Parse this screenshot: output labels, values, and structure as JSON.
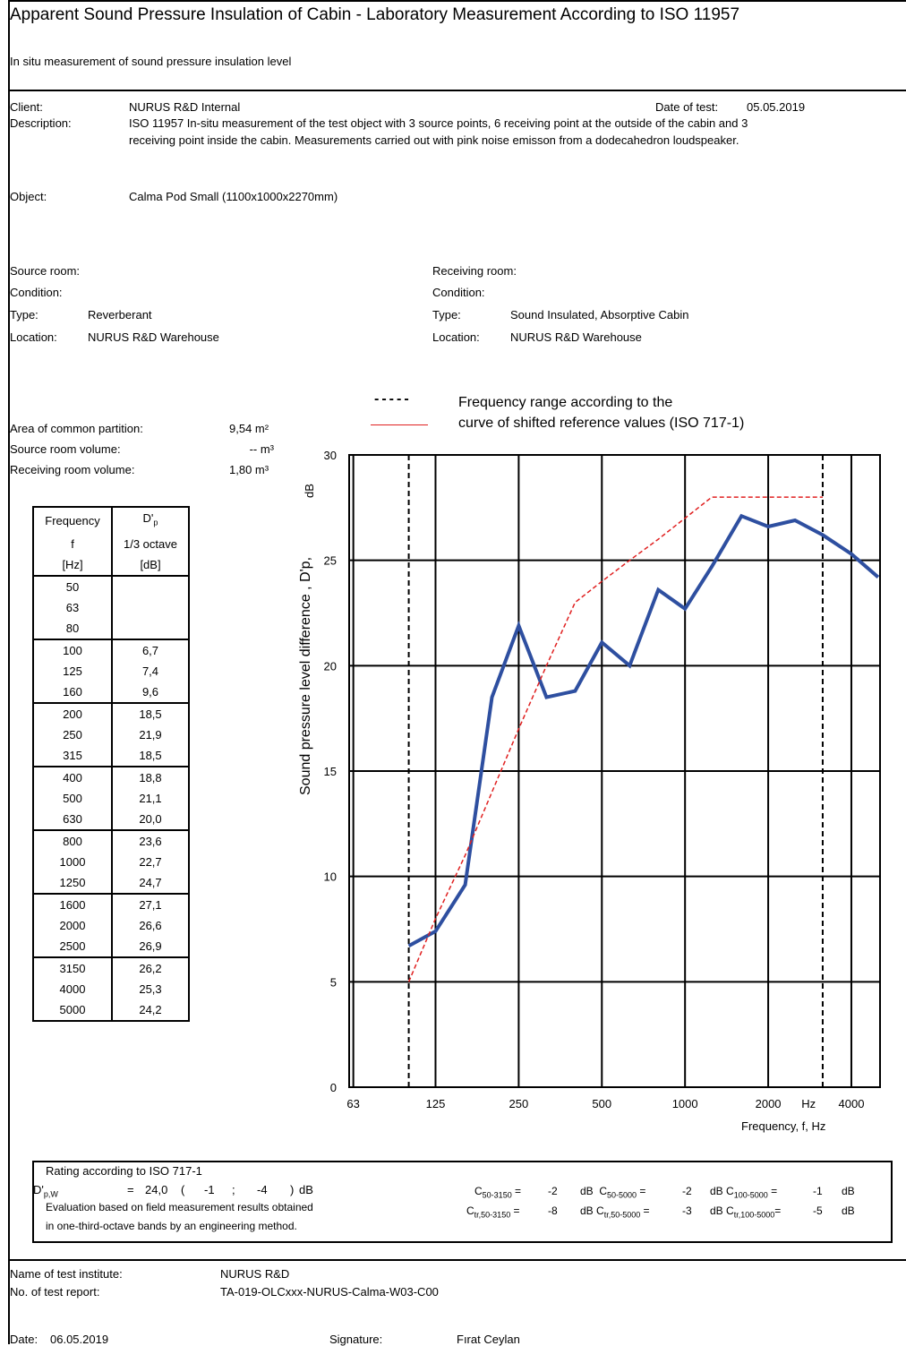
{
  "header": {
    "title": "Apparent Sound Pressure Insulation of Cabin - Laboratory Measurement According to ISO 11957",
    "subtitle": "In situ measurement of sound pressure insulation level"
  },
  "info": {
    "client_label": "Client:",
    "client_value": "NURUS R&D Internal",
    "date_label": "Date of test:",
    "date_value": "05.05.2019",
    "description_label": "Description:",
    "description_line1": "ISO 11957 In-situ measurement of the test object with 3 source points, 6 receiving point at the outside of the cabin and 3",
    "description_line2": "receiving point inside the cabin. Measurements carried out with pink noise emisson from a dodecahedron loudspeaker.",
    "object_label": "Object:",
    "object_value": "Calma Pod Small (1100x1000x2270mm)"
  },
  "rooms": {
    "source_room_label": "Source room:",
    "source_condition_label": "Condition:",
    "source_type_label": "Type:",
    "source_type_value": "Reverberant",
    "source_location_label": "Location:",
    "source_location_value": "NURUS R&D Warehouse",
    "receiving_room_label": "Receiving room:",
    "receiving_condition_label": "Condition:",
    "receiving_type_label": "Type:",
    "receiving_type_value": "Sound Insulated, Absorptive Cabin",
    "receiving_location_label": "Location:",
    "receiving_location_value": "NURUS R&D Warehouse"
  },
  "legend": {
    "dashed_label": "Frequency range according to the",
    "red_label": "curve of shifted reference values (ISO 717-1)",
    "dashed_sample": "-----"
  },
  "params": {
    "area_label": "Area of common partition:",
    "area_value": "9,54 m²",
    "source_volume_label": "Source room volume:",
    "source_volume_value": "-- m³",
    "receiving_volume_label": "Receiving room volume:",
    "receiving_volume_value": "1,80 m³"
  },
  "table": {
    "header": [
      [
        "Frequency",
        "D'p"
      ],
      [
        "f",
        "1/3 octave"
      ],
      [
        "[Hz]",
        "[dB]"
      ]
    ],
    "rows": [
      [
        "50",
        ""
      ],
      [
        "63",
        ""
      ],
      [
        "80",
        ""
      ],
      [
        "100",
        "6,7"
      ],
      [
        "125",
        "7,4"
      ],
      [
        "160",
        "9,6"
      ],
      [
        "200",
        "18,5"
      ],
      [
        "250",
        "21,9"
      ],
      [
        "315",
        "18,5"
      ],
      [
        "400",
        "18,8"
      ],
      [
        "500",
        "21,1"
      ],
      [
        "630",
        "20,0"
      ],
      [
        "800",
        "23,6"
      ],
      [
        "1000",
        "22,7"
      ],
      [
        "1250",
        "24,7"
      ],
      [
        "1600",
        "27,1"
      ],
      [
        "2000",
        "26,6"
      ],
      [
        "2500",
        "26,9"
      ],
      [
        "3150",
        "26,2"
      ],
      [
        "4000",
        "25,3"
      ],
      [
        "5000",
        "24,2"
      ]
    ]
  },
  "chart_data": {
    "type": "line",
    "ylabel": "Sound pressure level difference , D'p,",
    "ylabel_unit": "dB",
    "xlabel": "Frequency, f, Hz",
    "x_tick_labels": [
      "63",
      "125",
      "250",
      "500",
      "1000",
      "2000",
      "Hz",
      "4000"
    ],
    "y_ticks": [
      0,
      5,
      10,
      15,
      20,
      25,
      30
    ],
    "ylim": [
      0,
      30
    ],
    "x_scale": "log (one-third-octave bands)",
    "grid": true,
    "frequency_range_markers": [
      100,
      3150
    ],
    "series": [
      {
        "name": "D'p",
        "color": "#2e4fa0",
        "x": [
          100,
          125,
          160,
          200,
          250,
          315,
          400,
          500,
          630,
          800,
          1000,
          1250,
          1600,
          2000,
          2500,
          3150,
          4000,
          5000
        ],
        "values": [
          6.7,
          7.4,
          9.6,
          18.5,
          21.9,
          18.5,
          18.8,
          21.1,
          20.0,
          23.6,
          22.7,
          24.7,
          27.1,
          26.6,
          26.9,
          26.2,
          25.3,
          24.2
        ]
      },
      {
        "name": "curve of shifted reference values (ISO 717-1)",
        "color": "#e02020",
        "x": [
          100,
          125,
          160,
          200,
          250,
          315,
          400,
          500,
          630,
          800,
          1000,
          1250,
          1600,
          2000,
          2500,
          3150
        ],
        "values": [
          5,
          8,
          11,
          14,
          17,
          20,
          23,
          24,
          25,
          26,
          27,
          28,
          28,
          28,
          28,
          28
        ]
      }
    ]
  },
  "rating": {
    "title": "Rating according to ISO 717-1",
    "dpw_label": "D'",
    "dpw_sub": "p,W",
    "dpw_eq": "=",
    "dpw_value": "24,0",
    "c_value": "-1",
    "ctr_value": "-4",
    "unit": "dB",
    "note1": "Evaluation based on field measurement results obtained",
    "note2": "in one-third-octave bands by an engineering method.",
    "c50_3150": "-2",
    "c50_5000": "-2",
    "c100_5000": "-1",
    "ctr50_3150": "-8",
    "ctr50_5000": "-3",
    "ctr100_5000": "-5"
  },
  "footer": {
    "institute_label": "Name of test institute:",
    "institute_value": "NURUS R&D",
    "report_label": "No. of test report:",
    "report_value": "TA-019-OLCxxx-NURUS-Calma-W03-C00",
    "date_label": "Date:",
    "date_value": "06.05.2019",
    "signature_label": "Signature:",
    "signature_value": "Fırat Ceylan"
  }
}
